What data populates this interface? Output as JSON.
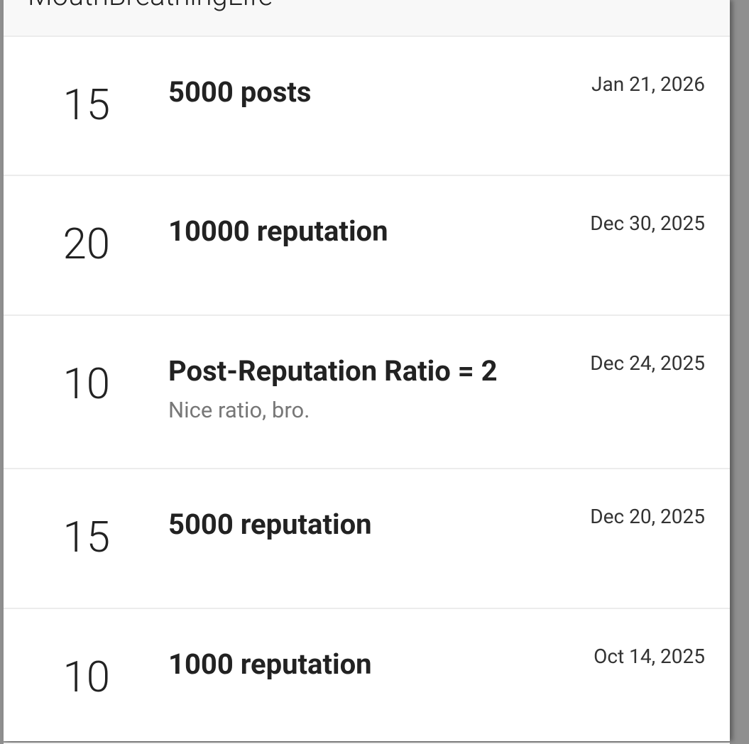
{
  "header": {
    "title": "MouthBreathingLife"
  },
  "achievements": [
    {
      "points": "15",
      "title": "5000 posts",
      "description": "",
      "date": "Jan 21, 2026"
    },
    {
      "points": "20",
      "title": "10000 reputation",
      "description": "",
      "date": "Dec 30, 2025"
    },
    {
      "points": "10",
      "title": "Post-Reputation Ratio = 2",
      "description": "Nice ratio, bro.",
      "date": "Dec 24, 2025"
    },
    {
      "points": "15",
      "title": "5000 reputation",
      "description": "",
      "date": "Dec 20, 2025"
    },
    {
      "points": "10",
      "title": "1000 reputation",
      "description": "",
      "date": "Oct 14, 2025"
    }
  ]
}
